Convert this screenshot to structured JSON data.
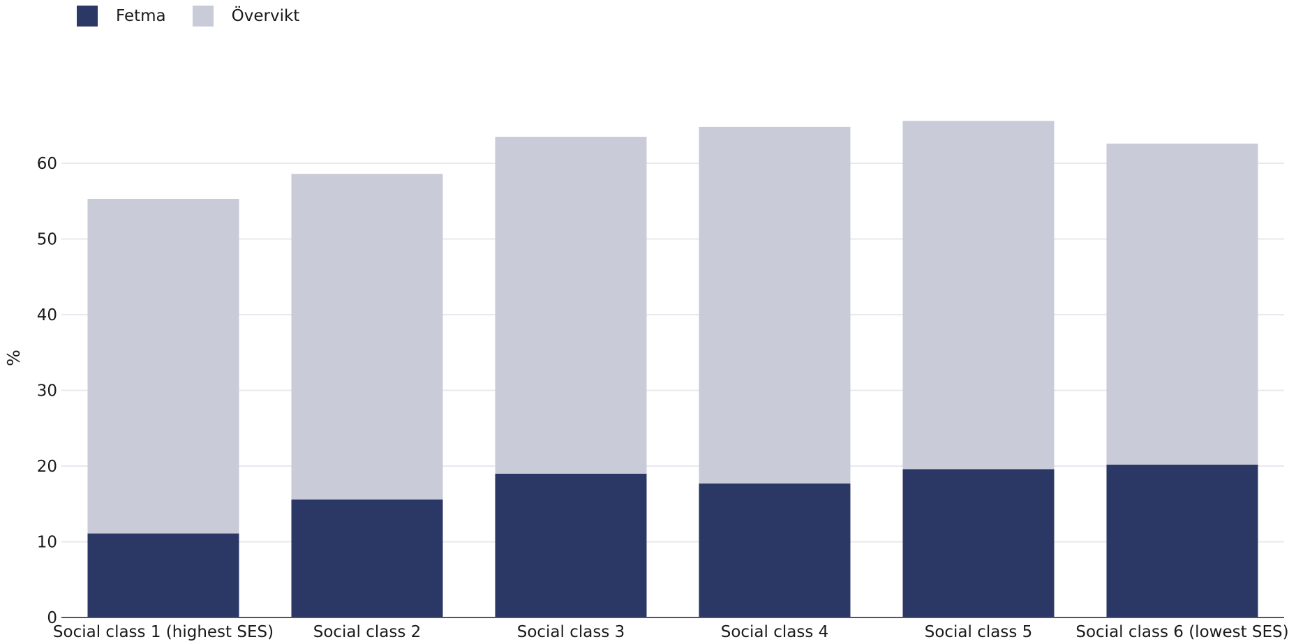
{
  "chart_data": {
    "type": "bar",
    "stacked": true,
    "categories": [
      "Social class 1 (highest SES)",
      "Social class 2",
      "Social class 3",
      "Social class 4",
      "Social class 5",
      "Social class 6 (lowest SES)"
    ],
    "series": [
      {
        "name": "Fetma",
        "color": "#2b3765",
        "values": [
          11.1,
          15.6,
          19.0,
          17.7,
          19.6,
          20.2
        ]
      },
      {
        "name": "Övervikt",
        "color": "#c9cbd8",
        "values": [
          44.2,
          43.0,
          44.5,
          47.1,
          46.0,
          42.4
        ]
      }
    ],
    "ylabel": "%",
    "xlabel": "",
    "title": "",
    "ylim": [
      0,
      70
    ],
    "yticks": [
      0,
      10,
      20,
      30,
      40,
      50,
      60
    ],
    "grid": true,
    "legend_position": "top-left"
  }
}
